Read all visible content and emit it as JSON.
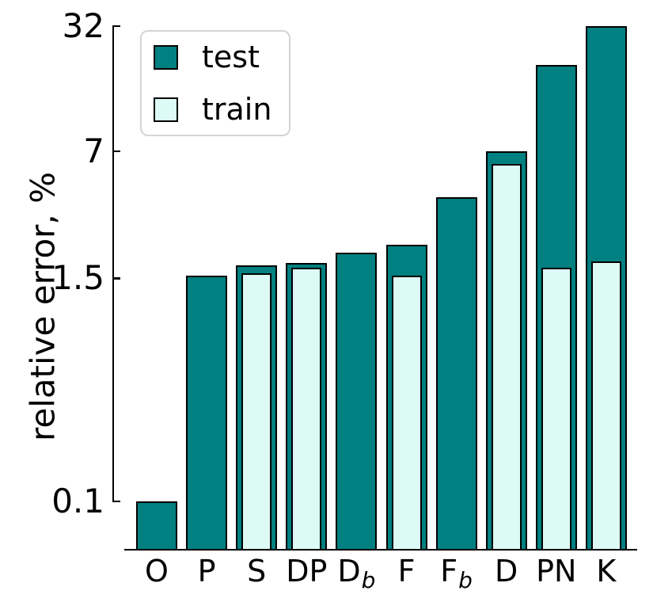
{
  "chart_data": {
    "type": "bar",
    "title": "",
    "xlabel": "",
    "ylabel": "relative error, %",
    "yscale": "log",
    "grid": false,
    "legend": {
      "position": "upper left",
      "items": [
        "test",
        "train"
      ]
    },
    "yticks": [
      {
        "value": 0.1,
        "label": "0.1"
      },
      {
        "value": 1.5,
        "label": "1.5"
      },
      {
        "value": 7,
        "label": "7"
      },
      {
        "value": 32,
        "label": "32"
      }
    ],
    "categories": [
      {
        "id": "O",
        "label": "O"
      },
      {
        "id": "P",
        "label": "P"
      },
      {
        "id": "S",
        "label": "S"
      },
      {
        "id": "DP",
        "label": "DP"
      },
      {
        "id": "Db",
        "label": "D",
        "subscript": "b"
      },
      {
        "id": "F",
        "label": "F"
      },
      {
        "id": "Fb",
        "label": "F",
        "subscript": "b"
      },
      {
        "id": "D",
        "label": "D"
      },
      {
        "id": "PN",
        "label": "PN"
      },
      {
        "id": "K",
        "label": "K"
      }
    ],
    "series": [
      {
        "name": "test",
        "color": "#008080",
        "values": [
          0.1,
          1.55,
          1.75,
          1.8,
          2.05,
          2.25,
          4.0,
          7.0,
          20.0,
          32.0
        ]
      },
      {
        "name": "train",
        "color": "#ddfbf5",
        "values": [
          null,
          null,
          1.6,
          1.7,
          null,
          1.55,
          null,
          6.0,
          1.7,
          1.85
        ]
      }
    ],
    "axis_color": "#000000",
    "background_color": "#ffffff"
  }
}
